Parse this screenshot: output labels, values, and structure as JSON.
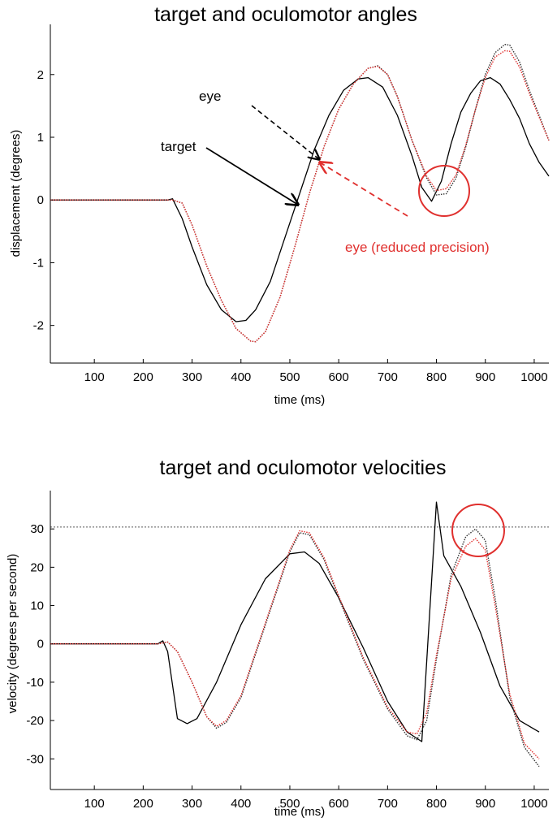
{
  "chart_data": [
    {
      "type": "line",
      "title": "target and oculomotor angles",
      "xlabel": "time (ms)",
      "ylabel": "displacement (degrees)",
      "xlim": [
        10,
        1030
      ],
      "ylim": [
        -2.6,
        2.8
      ],
      "xticks": [
        100,
        200,
        300,
        400,
        500,
        600,
        700,
        800,
        900,
        1000
      ],
      "yticks": [
        -2,
        -1,
        0,
        1,
        2
      ],
      "grid": false,
      "series": [
        {
          "name": "target",
          "color": "#000000",
          "style": "solid",
          "x": [
            10,
            250,
            260,
            280,
            300,
            330,
            360,
            390,
            410,
            430,
            460,
            490,
            520,
            550,
            580,
            610,
            640,
            660,
            690,
            720,
            750,
            770,
            790,
            810,
            830,
            850,
            870,
            890,
            910,
            930,
            950,
            970,
            990,
            1010,
            1030
          ],
          "y": [
            0,
            0,
            0.02,
            -0.3,
            -0.75,
            -1.35,
            -1.75,
            -1.94,
            -1.92,
            -1.75,
            -1.3,
            -0.6,
            0.1,
            0.8,
            1.35,
            1.75,
            1.93,
            1.95,
            1.8,
            1.35,
            0.7,
            0.2,
            -0.02,
            0.3,
            0.9,
            1.4,
            1.7,
            1.9,
            1.95,
            1.85,
            1.6,
            1.3,
            0.9,
            0.6,
            0.38
          ]
        },
        {
          "name": "eye",
          "color": "#333333",
          "style": "dotted",
          "x": [
            10,
            260,
            280,
            300,
            330,
            360,
            390,
            420,
            430,
            450,
            480,
            510,
            540,
            570,
            600,
            630,
            660,
            680,
            700,
            720,
            750,
            780,
            800,
            820,
            840,
            860,
            880,
            900,
            920,
            940,
            950,
            970,
            990,
            1010,
            1030
          ],
          "y": [
            0,
            0,
            -0.05,
            -0.4,
            -1.05,
            -1.6,
            -2.05,
            -2.25,
            -2.26,
            -2.1,
            -1.55,
            -0.75,
            0.1,
            0.85,
            1.45,
            1.85,
            2.1,
            2.14,
            2.0,
            1.65,
            0.95,
            0.35,
            0.08,
            0.1,
            0.35,
            0.85,
            1.45,
            2.0,
            2.35,
            2.48,
            2.47,
            2.2,
            1.75,
            1.35,
            0.95
          ]
        },
        {
          "name": "eye (reduced precision)",
          "color": "#e0302e",
          "style": "dotted",
          "x": [
            10,
            260,
            280,
            300,
            330,
            360,
            390,
            420,
            430,
            450,
            480,
            510,
            540,
            570,
            600,
            630,
            660,
            680,
            700,
            720,
            750,
            780,
            800,
            820,
            840,
            860,
            880,
            900,
            920,
            940,
            950,
            970,
            990,
            1010,
            1030
          ],
          "y": [
            0,
            0,
            -0.05,
            -0.4,
            -1.05,
            -1.6,
            -2.05,
            -2.25,
            -2.26,
            -2.1,
            -1.55,
            -0.75,
            0.1,
            0.85,
            1.45,
            1.85,
            2.1,
            2.13,
            2.0,
            1.65,
            0.95,
            0.38,
            0.15,
            0.18,
            0.4,
            0.88,
            1.45,
            1.95,
            2.28,
            2.38,
            2.37,
            2.12,
            1.7,
            1.32,
            0.95
          ]
        }
      ],
      "annotations": [
        "eye",
        "target",
        "eye (reduced precision)"
      ]
    },
    {
      "type": "line",
      "title": "target and oculomotor velocities",
      "xlabel": "time (ms)",
      "ylabel": "velocity (degrees per second)",
      "xlim": [
        10,
        1030
      ],
      "ylim": [
        -38,
        40
      ],
      "xticks": [
        100,
        200,
        300,
        400,
        500,
        600,
        700,
        800,
        900,
        1000
      ],
      "yticks": [
        -30,
        -20,
        -10,
        0,
        10,
        20,
        30
      ],
      "grid": false,
      "reference_line_y": 30.5,
      "series": [
        {
          "name": "target",
          "color": "#000000",
          "style": "solid",
          "x": [
            10,
            230,
            240,
            250,
            270,
            290,
            310,
            350,
            400,
            450,
            500,
            530,
            560,
            600,
            650,
            700,
            740,
            770,
            800,
            815,
            850,
            890,
            930,
            970,
            1010
          ],
          "y": [
            0,
            0,
            0.8,
            -2,
            -19.5,
            -20.8,
            -19.5,
            -10,
            5,
            17,
            23.5,
            24,
            21,
            12,
            -1,
            -15,
            -23,
            -25.5,
            37,
            23,
            15,
            3,
            -11,
            -20,
            -23
          ]
        },
        {
          "name": "eye",
          "color": "#333333",
          "style": "dotted",
          "x": [
            10,
            230,
            250,
            270,
            300,
            330,
            350,
            370,
            400,
            450,
            500,
            520,
            540,
            570,
            600,
            650,
            700,
            740,
            760,
            780,
            800,
            830,
            860,
            880,
            900,
            920,
            950,
            980,
            1010
          ],
          "y": [
            0,
            0,
            0.5,
            -2,
            -10,
            -19,
            -22,
            -20.5,
            -14,
            5,
            24,
            29,
            28.5,
            22,
            12,
            -4,
            -17,
            -24,
            -25,
            -20,
            -4,
            18,
            28,
            30,
            27,
            12,
            -14,
            -27,
            -32
          ]
        },
        {
          "name": "eye (reduced precision)",
          "color": "#e0302e",
          "style": "dotted",
          "x": [
            10,
            230,
            250,
            270,
            300,
            330,
            350,
            370,
            400,
            450,
            500,
            520,
            540,
            570,
            600,
            650,
            700,
            740,
            760,
            780,
            800,
            830,
            860,
            880,
            900,
            920,
            950,
            980,
            1010
          ],
          "y": [
            0,
            0,
            0.5,
            -2,
            -10,
            -19,
            -21.5,
            -20,
            -13.5,
            5.5,
            24.5,
            29.5,
            29,
            22.5,
            12.5,
            -3.5,
            -16.5,
            -23,
            -23.5,
            -18,
            -3,
            17,
            25.5,
            27.5,
            24.5,
            10,
            -13,
            -26,
            -30
          ]
        }
      ]
    }
  ]
}
